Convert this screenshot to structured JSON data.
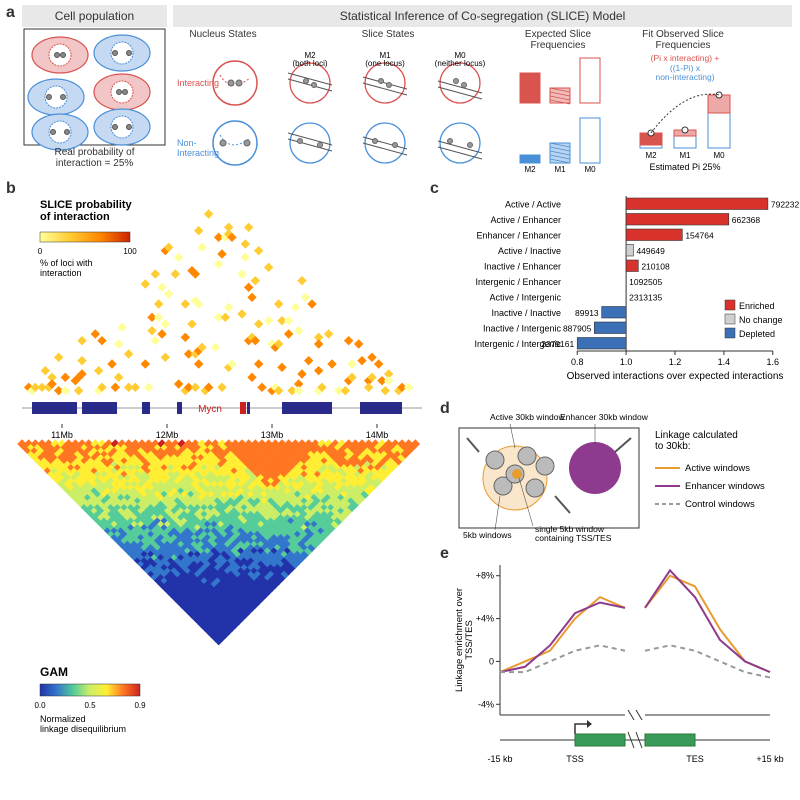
{
  "panel_a": {
    "label": "a",
    "cell_pop_title": "Cell population",
    "cell_pop_caption": "Real probability of\ninteraction = 25%",
    "slice_title": "Statistical Inference of Co-segregation (SLICE) Model",
    "sub_headers": [
      "Nucleus States",
      "Slice States",
      "Expected Slice\nFrequencies",
      "Fit Observed Slice\nFrequencies"
    ],
    "interacting_label": "Interacting",
    "noninteracting_label": "Non-\nInteracting",
    "slice_state_labels": [
      "M2\n(both loci)",
      "M1\n(one locus)",
      "M0\n(neither locus)"
    ],
    "fit_formula_top": "(Pi x interacting) +",
    "fit_formula_bottom": "((1-Pi) x\nnon-interacting)",
    "fit_caption": "Estimated Pi 25%",
    "interacting_color": "#d9534f",
    "noninteracting_color": "#4a90d9",
    "cell_fill_int": "#f2c6c6",
    "cell_fill_non": "#c6d9f2",
    "bar_labels": [
      "M2",
      "M1",
      "M0"
    ]
  },
  "panel_b": {
    "label": "b",
    "slice_title": "SLICE probability\nof interaction",
    "slice_legend": "% of loci with\ninteraction",
    "gam_title": "GAM",
    "gam_legend": "Normalized\nlinkage disequilibrium",
    "gene_label": "Mycn",
    "xticks": [
      "11Mb",
      "12Mb",
      "13Mb",
      "14Mb"
    ],
    "slice_colormap": [
      "#ffff99",
      "#ffcc33",
      "#ff8800",
      "#cc2200"
    ],
    "slice_range": [
      0,
      100
    ],
    "gam_colormap": [
      "#2233aa",
      "#3377cc",
      "#55cc99",
      "#ccee66",
      "#ffee33",
      "#ff7722",
      "#cc2222"
    ],
    "gam_range": [
      0.0,
      0.9
    ],
    "gene_color": "#2a2a8a",
    "mycn_color": "#cc2222"
  },
  "panel_c": {
    "label": "c",
    "categories": [
      {
        "name": "Active / Active",
        "val": 1.58,
        "count": "792232",
        "status": "enriched"
      },
      {
        "name": "Active / Enhancer",
        "val": 1.42,
        "count": "662368",
        "status": "enriched"
      },
      {
        "name": "Enhancer / Enhancer",
        "val": 1.23,
        "count": "154764",
        "status": "enriched"
      },
      {
        "name": "Active / Inactive",
        "val": 1.03,
        "count": "449649",
        "status": "nochange"
      },
      {
        "name": "Inactive / Enhancer",
        "val": 1.05,
        "count": "210108",
        "status": "enriched"
      },
      {
        "name": "Intergenic / Enhancer",
        "val": 1.0,
        "count": "1092505",
        "status": "nochange"
      },
      {
        "name": "Active / Intergenic",
        "val": 1.0,
        "count": "2313135",
        "status": "nochange"
      },
      {
        "name": "Inactive / Inactive",
        "val": 0.9,
        "count": "89913",
        "status": "depleted"
      },
      {
        "name": "Inactive / Intergenic",
        "val": 0.87,
        "count": "887905",
        "status": "depleted"
      },
      {
        "name": "Intergenic / Intergenic",
        "val": 0.8,
        "count": "2379161",
        "status": "depleted"
      }
    ],
    "xlabel": "Observed interactions over expected interactions",
    "xticks": [
      0.8,
      1.0,
      1.2,
      1.4,
      1.6
    ],
    "color_enriched": "#d9322d",
    "color_nochange": "#d0d0d0",
    "color_depleted": "#3b6fb6",
    "legend": [
      "Enriched",
      "No change",
      "Depleted"
    ]
  },
  "panel_d": {
    "label": "d",
    "labels": {
      "active_win": "Active 30kb window",
      "enhancer_win": "Enhancer 30kb window",
      "five_kb": "5kb windows",
      "single_5kb": "single 5kb window\ncontaining TSS/TES",
      "legend_title": "Linkage calculated\nto 30kb:",
      "legend_items": [
        "Active windows",
        "Enhancer windows",
        "Control windows"
      ]
    },
    "active_color": "#e89b2e",
    "enhancer_color": "#8e3a8e",
    "control_color": "#999999"
  },
  "panel_e": {
    "label": "e",
    "ylabel": "Linkage enrichment over\nTSS/TES",
    "yticks": [
      "+8%",
      "+4%",
      "0",
      "-4%"
    ],
    "xticks_left": [
      "-15 kb",
      "TSS"
    ],
    "xticks_right": [
      "TES",
      "+15 kb"
    ],
    "gene_color": "#3a9a5a",
    "series": {
      "active": {
        "color": "#e89b2e",
        "left": [
          -1,
          0,
          1,
          4,
          6,
          5
        ],
        "right": [
          5,
          8,
          7,
          3,
          0,
          -1
        ]
      },
      "enhancer": {
        "color": "#8e3a8e",
        "left": [
          -1,
          -0.5,
          1.5,
          4.5,
          5.5,
          5
        ],
        "right": [
          5,
          8.5,
          6,
          2,
          0,
          -1
        ]
      },
      "control": {
        "color": "#999999",
        "left": [
          -1,
          -1,
          0,
          1,
          1.5,
          1
        ],
        "right": [
          1,
          1.5,
          1,
          0,
          -1,
          -1.5
        ]
      }
    }
  }
}
